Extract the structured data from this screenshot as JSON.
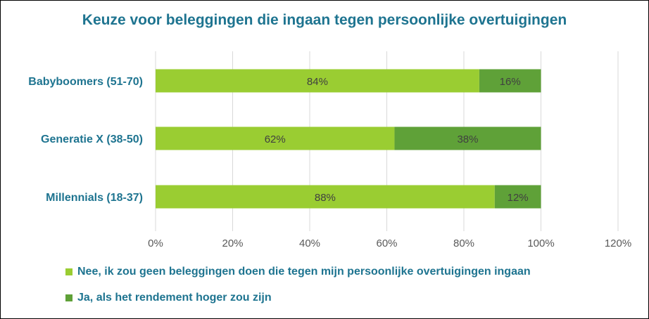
{
  "chart_data": {
    "type": "bar",
    "orientation": "horizontal",
    "stacked": true,
    "title": "Keuze voor beleggingen die ingaan tegen persoonlijke overtuigingen",
    "categories": [
      "Babyboomers (51-70)",
      "Generatie X (38-50)",
      "Millennials (18-37)"
    ],
    "series": [
      {
        "name": "Nee, ik zou geen beleggingen doen die tegen mijn persoonlijke overtuigingen ingaan",
        "values": [
          84,
          62,
          88
        ],
        "labels": [
          "84%",
          "62%",
          "88%"
        ],
        "color": "#9acd32"
      },
      {
        "name": "Ja, als het rendement hoger zou zijn",
        "values": [
          16,
          38,
          12
        ],
        "labels": [
          "16%",
          "38%",
          "12%"
        ],
        "color": "#5fa138"
      }
    ],
    "xlim": [
      0,
      120
    ],
    "xticks": [
      "0%",
      "20%",
      "40%",
      "60%",
      "80%",
      "100%",
      "120%"
    ],
    "grid": "vertical",
    "legend_position": "bottom",
    "title_color": "#1e7490",
    "gridline_color": "#d9d9d9"
  }
}
